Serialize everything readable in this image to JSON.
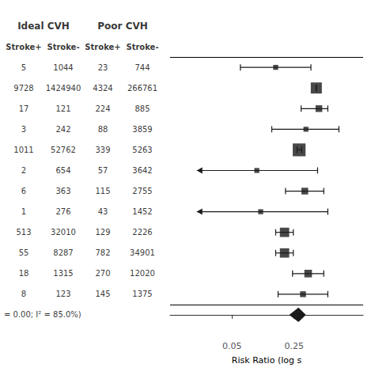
{
  "chart_data": {
    "type": "forest",
    "headers": [
      "Ideal CVH",
      "Poor CVH"
    ],
    "col_headers": [
      "Stroke+",
      "Stroke-",
      "Stroke+",
      "Stroke-"
    ],
    "table": [
      [
        5,
        1044,
        23,
        744
      ],
      [
        9728,
        1424940,
        4324,
        266761
      ],
      [
        17,
        121,
        224,
        885
      ],
      [
        3,
        242,
        88,
        3859
      ],
      [
        1011,
        52762,
        339,
        5263
      ],
      [
        2,
        654,
        57,
        3642
      ],
      [
        6,
        363,
        115,
        2755
      ],
      [
        1,
        276,
        43,
        1452
      ],
      [
        513,
        32010,
        129,
        2226
      ],
      [
        55,
        8287,
        782,
        34901
      ],
      [
        18,
        1315,
        270,
        12020
      ],
      [
        8,
        123,
        145,
        1375
      ]
    ],
    "values": [
      0.155,
      0.445,
      0.476,
      0.34,
      0.285,
      0.095,
      0.33,
      0.105,
      0.195,
      0.195,
      0.36,
      0.315
    ],
    "ci_low": [
      0.062,
      0.445,
      0.3,
      0.14,
      0.27,
      0.02,
      0.2,
      0.02,
      0.155,
      0.155,
      0.24,
      0.165
    ],
    "ci_high": [
      0.387,
      0.445,
      0.6,
      0.8,
      0.305,
      0.46,
      0.54,
      0.6,
      0.245,
      0.245,
      0.54,
      0.6
    ],
    "weights": [
      3,
      10,
      5,
      3,
      12,
      3,
      5,
      3,
      8,
      8,
      6,
      4
    ],
    "arrows": [
      false,
      false,
      false,
      false,
      false,
      true,
      false,
      true,
      false,
      false,
      false,
      false
    ],
    "summary": {
      "value": 0.28,
      "ci_low": 0.22,
      "ci_high": 0.34
    },
    "footer": "= 0.00; I² = 85.0%)",
    "xlabel": "Risk Ratio (log s",
    "xlim": [
      0.01,
      1.5
    ],
    "xticks": [
      0.05,
      0.25
    ],
    "log": "x",
    "grid": false,
    "tick_labels": "x",
    "color": "#1a1a1a"
  }
}
